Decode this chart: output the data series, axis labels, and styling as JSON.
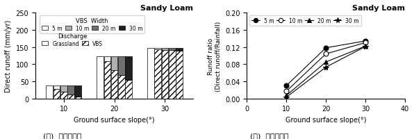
{
  "bar_chart": {
    "title": "Sandy Loam",
    "xlabel": "Ground surface slope(°)",
    "ylabel": "Direct runoff (mm/yr)",
    "ylim": [
      0,
      250
    ],
    "yticks": [
      0,
      50,
      100,
      150,
      200,
      250
    ],
    "slopes": [
      10,
      20,
      30
    ],
    "vbs_widths": [
      "5 m",
      "10 m",
      "20 m",
      "30 m"
    ],
    "grassland_values": [
      38,
      122,
      148
    ],
    "vbs_values": [
      [
        28,
        108,
        143
      ],
      [
        20,
        83,
        142
      ],
      [
        12,
        69,
        140
      ],
      [
        6,
        55,
        138
      ]
    ],
    "bar_colors_dark": [
      "#ffffff",
      "#c0c0c0",
      "#808080",
      "#404040"
    ],
    "hatch_pattern": "////",
    "grassland_color": "#ffffff",
    "vbs_hatch_color": "#a0a0a0"
  },
  "line_chart": {
    "title": "Sandy Loam",
    "xlabel": "Ground surface slope(°)",
    "ylabel": "Runoff ratio\n(Direct runoff/Rainfall)",
    "ylim": [
      0,
      0.2
    ],
    "yticks": [
      0,
      0.04,
      0.08,
      0.12,
      0.16,
      0.2
    ],
    "xlim": [
      0,
      40
    ],
    "xticks": [
      0,
      10,
      20,
      30,
      40
    ],
    "slopes": [
      10,
      20,
      30
    ],
    "vbs_widths": [
      "5 m",
      "10 m",
      "20 m",
      "30 m"
    ],
    "data": [
      [
        0.03,
        0.118,
        0.134
      ],
      [
        0.017,
        0.104,
        0.13
      ],
      [
        0.007,
        0.085,
        0.122
      ],
      [
        0.003,
        0.073,
        0.121
      ]
    ],
    "markers": [
      "o",
      "o",
      "^",
      "*"
    ],
    "marker_fills": [
      "black",
      "white",
      "black",
      "black"
    ],
    "line_color": "black"
  },
  "left_caption": "(가)  직접유입량",
  "right_caption": "(나)  강우유입률"
}
